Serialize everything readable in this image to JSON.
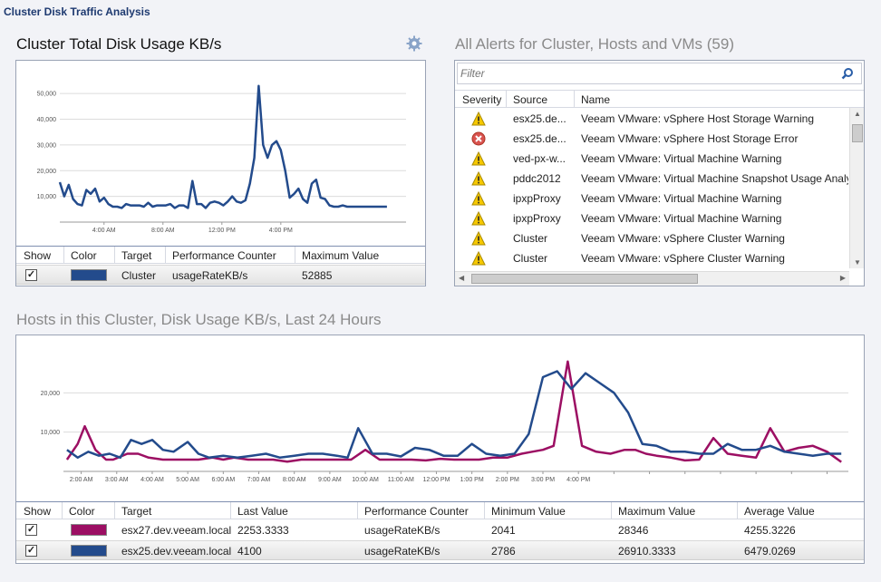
{
  "app_title": "Cluster Disk Traffic Analysis",
  "cluster_panel": {
    "title": "Cluster Total Disk Usage KB/s",
    "columns": [
      "Show",
      "Color",
      "Target",
      "Performance Counter",
      "Maximum Value"
    ],
    "rows": [
      {
        "show": true,
        "color": "#234b8c",
        "target": "Cluster",
        "counter": "usageRateKB/s",
        "max": "52885"
      }
    ]
  },
  "alerts_panel": {
    "title": "All Alerts for Cluster, Hosts and VMs (59)",
    "filter_placeholder": "Filter",
    "columns": [
      "Severity",
      "Source",
      "Name"
    ],
    "rows": [
      {
        "severity": "warning",
        "source": "esx25.de...",
        "name": "Veeam VMware: vSphere Host Storage Warning"
      },
      {
        "severity": "error",
        "source": "esx25.de...",
        "name": "Veeam VMware: vSphere Host Storage Error"
      },
      {
        "severity": "warning",
        "source": "ved-px-w...",
        "name": "Veeam VMware: Virtual Machine Warning"
      },
      {
        "severity": "warning",
        "source": "pddc2012",
        "name": "Veeam VMware: Virtual Machine Snapshot Usage Analys"
      },
      {
        "severity": "warning",
        "source": "ipxpProxy",
        "name": "Veeam VMware: Virtual Machine Warning"
      },
      {
        "severity": "warning",
        "source": "ipxpProxy",
        "name": "Veeam VMware: Virtual Machine Warning"
      },
      {
        "severity": "warning",
        "source": "Cluster",
        "name": "Veeam VMware: vSphere Cluster Warning"
      },
      {
        "severity": "warning",
        "source": "Cluster",
        "name": "Veeam VMware: vSphere Cluster Warning"
      }
    ]
  },
  "hosts_panel": {
    "title": "Hosts in this Cluster, Disk Usage KB/s, Last 24 Hours",
    "columns": [
      "Show",
      "Color",
      "Target",
      "Last Value",
      "Performance Counter",
      "Minimum Value",
      "Maximum Value",
      "Average Value"
    ],
    "rows": [
      {
        "show": true,
        "color": "#9c0f63",
        "target": "esx27.dev.veeam.local",
        "last": "2253.3333",
        "counter": "usageRateKB/s",
        "min": "2041",
        "max": "28346",
        "avg": "4255.3226"
      },
      {
        "show": true,
        "color": "#234b8c",
        "target": "esx25.dev.veeam.local",
        "last": "4100",
        "counter": "usageRateKB/s",
        "min": "2786",
        "max": "26910.3333",
        "avg": "6479.0269"
      }
    ]
  },
  "chart_data": [
    {
      "type": "line",
      "title": "Cluster Total Disk Usage KB/s",
      "ylim": [
        0,
        55000
      ],
      "yticks": [
        10000,
        20000,
        30000,
        40000,
        50000
      ],
      "ytick_labels": [
        "10,000",
        "20,000",
        "30,000",
        "40,000",
        "50,000"
      ],
      "xlim": [
        0,
        23.5
      ],
      "xticks": [
        3,
        7,
        11,
        15
      ],
      "xtick_labels": [
        "4:00 AM",
        "8:00 AM",
        "12:00 PM",
        "4:00 PM"
      ],
      "series": [
        {
          "color": "#234b8c",
          "x": [
            0,
            0.3,
            0.6,
            0.9,
            1.2,
            1.5,
            1.8,
            2.1,
            2.4,
            2.7,
            3,
            3.3,
            3.6,
            3.9,
            4.2,
            4.5,
            4.8,
            5.1,
            5.4,
            5.7,
            6,
            6.3,
            6.6,
            6.9,
            7.2,
            7.5,
            7.8,
            8.1,
            8.4,
            8.7,
            9,
            9.3,
            9.6,
            9.9,
            10.2,
            10.5,
            10.8,
            11.1,
            11.4,
            11.7,
            12,
            12.3,
            12.6,
            12.9,
            13.2,
            13.5,
            13.8,
            14.1,
            14.4,
            14.7,
            15,
            15.3,
            15.6,
            15.9,
            16.2,
            16.5,
            16.8,
            17.1,
            17.4,
            17.7,
            18,
            18.3,
            18.6,
            18.9,
            19.2,
            19.5,
            19.8,
            20.1,
            20.4,
            20.7,
            21,
            21.3,
            21.6,
            21.9,
            22.2
          ],
          "y": [
            15500,
            10000,
            14500,
            9000,
            7000,
            6500,
            12500,
            11000,
            13000,
            8000,
            9500,
            7000,
            6000,
            6000,
            5500,
            7000,
            6500,
            6500,
            6500,
            6000,
            7500,
            6000,
            6500,
            6500,
            6500,
            7000,
            5500,
            6500,
            6500,
            5500,
            16000,
            7000,
            7000,
            5500,
            7500,
            8000,
            7500,
            6500,
            8000,
            10000,
            8000,
            7500,
            8500,
            15000,
            25000,
            53000,
            30000,
            25000,
            30000,
            31500,
            28000,
            20000,
            9500,
            11000,
            13000,
            9000,
            7500,
            15000,
            16500,
            9500,
            9000,
            6500,
            6000,
            6000,
            6500,
            6000,
            6000,
            6000,
            6000,
            6000,
            6000,
            6000,
            6000,
            6000,
            6000
          ]
        }
      ]
    },
    {
      "type": "line",
      "title": "Hosts in this Cluster, Disk Usage KB/s, Last 24 Hours",
      "ylim": [
        0,
        30000
      ],
      "yticks": [
        10000,
        20000
      ],
      "ytick_labels": [
        "10,000",
        "20,000"
      ],
      "xlim": [
        1.5,
        23.6
      ],
      "xticks": [
        2,
        3,
        4,
        5,
        6,
        7,
        8,
        9,
        10,
        11,
        12,
        13,
        14,
        15,
        16,
        17,
        18,
        19,
        20,
        21,
        22,
        23
      ],
      "xtick_labels": [
        "2:00 AM",
        "3:00 AM",
        "4:00 AM",
        "5:00 AM",
        "6:00 AM",
        "7:00 AM",
        "8:00 AM",
        "9:00 AM",
        "10:00 AM",
        "11:00 AM",
        "12:00 PM",
        "1:00 PM",
        "2:00 PM",
        "3:00 PM",
        "4:00 PM",
        "",
        "",
        "",
        "",
        "",
        "",
        ""
      ],
      "series": [
        {
          "name": "esx27.dev.veeam.local",
          "color": "#9c0f63",
          "x": [
            1.6,
            1.9,
            2.1,
            2.4,
            2.7,
            2.9,
            3.3,
            3.6,
            3.9,
            4.3,
            4.7,
            5,
            5.3,
            5.7,
            6,
            6.3,
            6.7,
            7,
            7.4,
            7.8,
            8.2,
            8.6,
            9,
            9.3,
            9.6,
            10,
            10.4,
            10.7,
            11,
            11.3,
            11.7,
            12.1,
            12.5,
            12.9,
            13.2,
            13.6,
            14,
            14.4,
            14.7,
            15,
            15.3,
            15.7,
            16.1,
            16.5,
            16.9,
            17.3,
            17.6,
            17.9,
            18.2,
            18.6,
            19,
            19.4,
            19.8,
            20.2,
            20.6,
            21,
            21.4,
            21.8,
            22.2,
            22.6,
            23,
            23.4
          ],
          "y": [
            3000,
            7000,
            11500,
            5500,
            3000,
            3000,
            4500,
            4500,
            3500,
            3000,
            3000,
            3000,
            3000,
            3500,
            3000,
            3500,
            3000,
            3000,
            3000,
            2500,
            3000,
            3000,
            3000,
            3000,
            3000,
            5500,
            3000,
            3000,
            3000,
            3000,
            2800,
            3200,
            3000,
            3000,
            3000,
            3500,
            3500,
            4500,
            5000,
            5500,
            6500,
            28000,
            6500,
            5000,
            4500,
            5500,
            5500,
            4500,
            4000,
            3500,
            2800,
            3000,
            8500,
            4500,
            4000,
            3500,
            11000,
            5000,
            6000,
            6500,
            5000,
            2400
          ]
        },
        {
          "name": "esx25.dev.veeam.local",
          "color": "#234b8c",
          "x": [
            1.6,
            1.9,
            2.2,
            2.5,
            2.8,
            3.1,
            3.4,
            3.7,
            4,
            4.3,
            4.6,
            5,
            5.3,
            5.6,
            6,
            6.4,
            6.8,
            7.2,
            7.6,
            8,
            8.4,
            8.8,
            9.2,
            9.5,
            9.8,
            10.2,
            10.6,
            11,
            11.4,
            11.8,
            12.2,
            12.6,
            13,
            13.4,
            13.8,
            14.2,
            14.6,
            15,
            15.4,
            15.8,
            16.2,
            16.6,
            17,
            17.4,
            17.8,
            18.2,
            18.6,
            19,
            19.4,
            19.8,
            20.2,
            20.6,
            21,
            21.4,
            21.8,
            22.2,
            22.6,
            23,
            23.4
          ],
          "y": [
            5500,
            3500,
            5000,
            4000,
            4500,
            3500,
            8000,
            7000,
            8000,
            5500,
            5000,
            7500,
            4500,
            3500,
            4000,
            3500,
            4000,
            4500,
            3500,
            4000,
            4500,
            4500,
            4000,
            3500,
            11000,
            4500,
            4500,
            3800,
            6000,
            5500,
            4000,
            4000,
            7000,
            4500,
            4000,
            4500,
            9500,
            24000,
            25500,
            21000,
            25000,
            22500,
            20000,
            15000,
            7000,
            6500,
            5000,
            5000,
            4500,
            4500,
            7000,
            5500,
            5500,
            6500,
            5000,
            4500,
            4000,
            4500,
            4500
          ]
        }
      ]
    }
  ]
}
